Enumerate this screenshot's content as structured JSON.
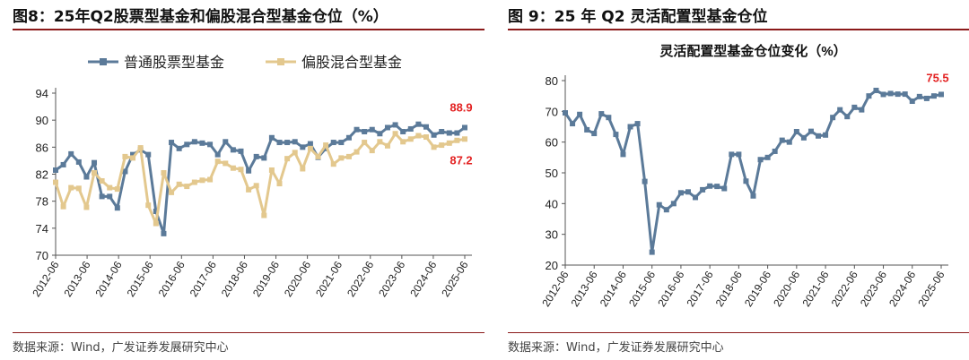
{
  "left_panel": {
    "title": "图8：25年Q2股票型基金和偏股混合型基金仓位（%）",
    "source": "数据来源：Wind，广发证券发展研究中心"
  },
  "right_panel": {
    "title": "图 9：25 年 Q2 灵活配置型基金仓位",
    "source": "数据来源：Wind，广发证券发展研究中心"
  },
  "chart_data": [
    {
      "type": "line",
      "title": "",
      "xlabel": "",
      "ylabel": "",
      "ylim": [
        70,
        94
      ],
      "yticks": [
        70,
        74,
        78,
        82,
        86,
        90,
        94
      ],
      "xticks": [
        "2012-06",
        "2013-06",
        "2014-06",
        "2015-06",
        "2016-06",
        "2017-06",
        "2018-06",
        "2019-06",
        "2020-06",
        "2021-06",
        "2022-06",
        "2023-06",
        "2024-06",
        "2025-06"
      ],
      "grid": false,
      "legend": "top",
      "colors": [
        "#5b7a99",
        "#e3c88e"
      ],
      "series": [
        {
          "name": "普通股票型基金",
          "values": [
            82.6,
            83.4,
            85.0,
            83.8,
            81.6,
            83.7,
            78.7,
            78.7,
            77.0,
            82.4,
            84.9,
            85.6,
            84.9,
            76.5,
            73.2,
            86.7,
            85.8,
            86.4,
            86.8,
            86.6,
            86.4,
            84.9,
            86.8,
            85.6,
            85.4,
            82.5,
            84.6,
            84.4,
            87.4,
            86.7,
            86.7,
            86.8,
            86.0,
            86.5,
            84.5,
            85.8,
            86.7,
            86.7,
            87.4,
            88.6,
            88.3,
            88.6,
            88.0,
            88.9,
            89.3,
            88.3,
            88.7,
            89.4,
            89.0,
            87.8,
            88.3,
            88.1,
            88.1,
            88.9
          ],
          "end_label": "88.9"
        },
        {
          "name": "偏股混合型基金",
          "values": [
            80.8,
            77.2,
            80.0,
            79.9,
            77.1,
            82.2,
            81.0,
            80.0,
            79.8,
            84.6,
            84.4,
            85.9,
            77.4,
            74.7,
            82.2,
            79.3,
            80.5,
            80.2,
            80.8,
            81.1,
            81.2,
            83.9,
            83.6,
            82.9,
            82.7,
            79.7,
            80.3,
            75.9,
            82.6,
            80.6,
            84.3,
            85.2,
            82.8,
            85.8,
            84.6,
            86.3,
            83.5,
            84.4,
            84.6,
            85.3,
            86.7,
            85.5,
            86.8,
            86.2,
            88.0,
            86.8,
            87.2,
            87.7,
            87.5,
            86.0,
            86.3,
            86.6,
            87.0,
            87.2
          ],
          "end_label": "87.2"
        }
      ]
    },
    {
      "type": "line",
      "title": "灵活配置型基金仓位变化（%）",
      "xlabel": "",
      "ylabel": "",
      "ylim": [
        20,
        80
      ],
      "yticks": [
        20,
        30,
        40,
        50,
        60,
        70,
        80
      ],
      "xticks": [
        "2012-06",
        "2013-06",
        "2014-06",
        "2015-06",
        "2016-06",
        "2017-06",
        "2018-06",
        "2019-06",
        "2020-06",
        "2021-06",
        "2022-06",
        "2023-06",
        "2024-06",
        "2025-06"
      ],
      "grid": false,
      "colors": [
        "#5b7a99"
      ],
      "series": [
        {
          "values": [
            69.5,
            66.0,
            69.0,
            64.0,
            62.8,
            69.2,
            68.0,
            62.5,
            56.0,
            65.0,
            66.0,
            47.2,
            24.2,
            39.6,
            38.0,
            40.0,
            43.5,
            43.8,
            42.0,
            44.5,
            45.7,
            45.6,
            44.9,
            56.0,
            56.0,
            47.3,
            42.5,
            54.3,
            55.0,
            57.0,
            60.6,
            60.0,
            63.4,
            61.4,
            63.5,
            62.0,
            62.3,
            68.0,
            70.5,
            68.3,
            71.3,
            70.5,
            75.0,
            76.8,
            75.5,
            75.8,
            75.6,
            75.6,
            73.3,
            74.8,
            74.2,
            75.0,
            75.5
          ],
          "end_label": "75.5"
        }
      ]
    }
  ]
}
